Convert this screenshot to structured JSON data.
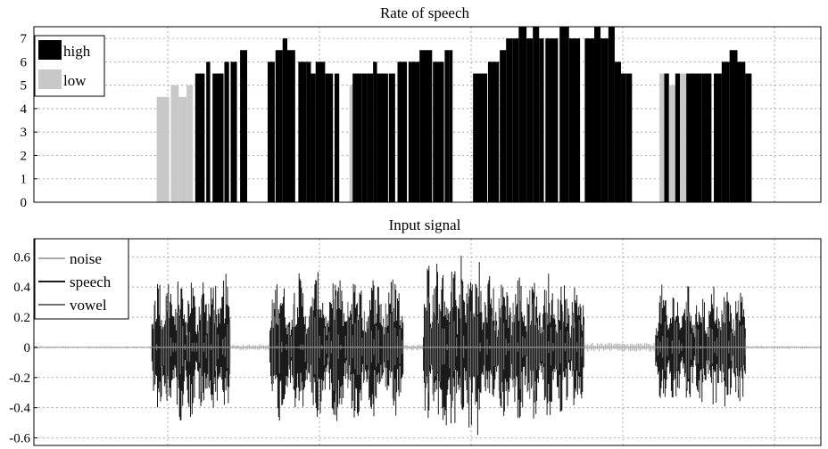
{
  "chart_data": [
    {
      "type": "bar",
      "title": "Rate of speech",
      "xlabel": "",
      "ylabel": "",
      "ylim": [
        0,
        7.5
      ],
      "yticks": [
        0,
        1,
        2,
        3,
        4,
        5,
        6,
        7
      ],
      "grid": true,
      "legend": {
        "placement": "top-left",
        "entries": [
          "high",
          "low"
        ]
      },
      "series": [
        {
          "name": "high",
          "color": "#000000"
        },
        {
          "name": "low",
          "color": "#c8c8c8"
        }
      ],
      "xlim": [
        0,
        1000
      ],
      "bars": [
        {
          "x": 156,
          "w": 16,
          "v": 4.5,
          "s": "low"
        },
        {
          "x": 174,
          "w": 10,
          "v": 5.0,
          "s": "low"
        },
        {
          "x": 184,
          "w": 10,
          "v": 4.5,
          "s": "low"
        },
        {
          "x": 194,
          "w": 8,
          "v": 5.0,
          "s": "low"
        },
        {
          "x": 205,
          "w": 12,
          "v": 5.5,
          "s": "high"
        },
        {
          "x": 219,
          "w": 5,
          "v": 6.0,
          "s": "high"
        },
        {
          "x": 227,
          "w": 14,
          "v": 5.5,
          "s": "high"
        },
        {
          "x": 242,
          "w": 6,
          "v": 6.0,
          "s": "high"
        },
        {
          "x": 250,
          "w": 8,
          "v": 6.0,
          "s": "high"
        },
        {
          "x": 262,
          "w": 9,
          "v": 6.5,
          "s": "high"
        },
        {
          "x": 297,
          "w": 9,
          "v": 6.0,
          "s": "high"
        },
        {
          "x": 307,
          "w": 9,
          "v": 6.5,
          "s": "high"
        },
        {
          "x": 316,
          "w": 6,
          "v": 7.0,
          "s": "high"
        },
        {
          "x": 322,
          "w": 10,
          "v": 6.5,
          "s": "high"
        },
        {
          "x": 336,
          "w": 10,
          "v": 6.0,
          "s": "high"
        },
        {
          "x": 346,
          "w": 6,
          "v": 6.0,
          "s": "high"
        },
        {
          "x": 352,
          "w": 6,
          "v": 5.5,
          "s": "high"
        },
        {
          "x": 358,
          "w": 12,
          "v": 6.0,
          "s": "high"
        },
        {
          "x": 370,
          "w": 10,
          "v": 5.5,
          "s": "high"
        },
        {
          "x": 382,
          "w": 6,
          "v": 5.5,
          "s": "high"
        },
        {
          "x": 401,
          "w": 4,
          "v": 5.0,
          "s": "low"
        },
        {
          "x": 405,
          "w": 6,
          "v": 5.5,
          "s": "high"
        },
        {
          "x": 411,
          "w": 6,
          "v": 5.5,
          "s": "high"
        },
        {
          "x": 417,
          "w": 6,
          "v": 5.5,
          "s": "high"
        },
        {
          "x": 423,
          "w": 8,
          "v": 5.5,
          "s": "high"
        },
        {
          "x": 431,
          "w": 5,
          "v": 6.0,
          "s": "high"
        },
        {
          "x": 436,
          "w": 14,
          "v": 5.5,
          "s": "high"
        },
        {
          "x": 451,
          "w": 8,
          "v": 5.5,
          "s": "high"
        },
        {
          "x": 462,
          "w": 12,
          "v": 6.0,
          "s": "high"
        },
        {
          "x": 476,
          "w": 14,
          "v": 6.0,
          "s": "high"
        },
        {
          "x": 490,
          "w": 16,
          "v": 6.5,
          "s": "high"
        },
        {
          "x": 507,
          "w": 14,
          "v": 6.0,
          "s": "high"
        },
        {
          "x": 522,
          "w": 6,
          "v": 6.5,
          "s": "high"
        },
        {
          "x": 528,
          "w": 4,
          "v": 6.5,
          "s": "high"
        },
        {
          "x": 558,
          "w": 18,
          "v": 5.5,
          "s": "high"
        },
        {
          "x": 577,
          "w": 14,
          "v": 6.0,
          "s": "high"
        },
        {
          "x": 592,
          "w": 8,
          "v": 6.5,
          "s": "high"
        },
        {
          "x": 600,
          "w": 8,
          "v": 7.0,
          "s": "high"
        },
        {
          "x": 608,
          "w": 8,
          "v": 7.0,
          "s": "high"
        },
        {
          "x": 616,
          "w": 10,
          "v": 7.5,
          "s": "high"
        },
        {
          "x": 626,
          "w": 8,
          "v": 7.0,
          "s": "high"
        },
        {
          "x": 634,
          "w": 8,
          "v": 7.5,
          "s": "high"
        },
        {
          "x": 642,
          "w": 6,
          "v": 7.0,
          "s": "high"
        },
        {
          "x": 650,
          "w": 16,
          "v": 7.0,
          "s": "high"
        },
        {
          "x": 668,
          "w": 12,
          "v": 7.5,
          "s": "high"
        },
        {
          "x": 680,
          "w": 14,
          "v": 7.0,
          "s": "high"
        },
        {
          "x": 700,
          "w": 12,
          "v": 7.0,
          "s": "high"
        },
        {
          "x": 712,
          "w": 8,
          "v": 7.5,
          "s": "high"
        },
        {
          "x": 720,
          "w": 10,
          "v": 7.0,
          "s": "high"
        },
        {
          "x": 730,
          "w": 8,
          "v": 7.5,
          "s": "high"
        },
        {
          "x": 738,
          "w": 8,
          "v": 6.0,
          "s": "high"
        },
        {
          "x": 746,
          "w": 6,
          "v": 5.5,
          "s": "high"
        },
        {
          "x": 752,
          "w": 8,
          "v": 5.5,
          "s": "high"
        },
        {
          "x": 795,
          "w": 6,
          "v": 5.5,
          "s": "low"
        },
        {
          "x": 801,
          "w": 6,
          "v": 5.5,
          "s": "high"
        },
        {
          "x": 807,
          "w": 8,
          "v": 5.0,
          "s": "low"
        },
        {
          "x": 815,
          "w": 6,
          "v": 5.5,
          "s": "high"
        },
        {
          "x": 821,
          "w": 8,
          "v": 5.5,
          "s": "low"
        },
        {
          "x": 829,
          "w": 20,
          "v": 5.5,
          "s": "high"
        },
        {
          "x": 849,
          "w": 12,
          "v": 5.5,
          "s": "high"
        },
        {
          "x": 864,
          "w": 10,
          "v": 5.5,
          "s": "high"
        },
        {
          "x": 874,
          "w": 10,
          "v": 6.0,
          "s": "high"
        },
        {
          "x": 884,
          "w": 10,
          "v": 6.5,
          "s": "high"
        },
        {
          "x": 894,
          "w": 10,
          "v": 6.0,
          "s": "high"
        },
        {
          "x": 904,
          "w": 8,
          "v": 5.5,
          "s": "high"
        }
      ]
    },
    {
      "type": "line",
      "title": "Input signal",
      "xlabel": "",
      "ylabel": "",
      "ylim": [
        -0.65,
        0.72
      ],
      "yticks": [
        -0.6,
        -0.4,
        -0.2,
        0,
        0.2,
        0.4,
        0.6
      ],
      "grid": true,
      "legend": {
        "placement": "top-left",
        "entries": [
          "noise",
          "speech",
          "vowel"
        ]
      },
      "series": [
        {
          "name": "noise",
          "color": "#a8a8a8"
        },
        {
          "name": "speech",
          "color": "#1a1a1a"
        },
        {
          "name": "vowel",
          "color": "#707070"
        }
      ],
      "xlim": [
        0,
        1000
      ],
      "segments": [
        {
          "start": 0,
          "end": 150,
          "s": "noise",
          "amp": 0.008
        },
        {
          "start": 150,
          "end": 250,
          "s": "speech",
          "amp": 0.5
        },
        {
          "start": 250,
          "end": 300,
          "s": "noise",
          "amp": 0.02
        },
        {
          "start": 300,
          "end": 470,
          "s": "speech",
          "amp": 0.5
        },
        {
          "start": 470,
          "end": 495,
          "s": "noise",
          "amp": 0.02
        },
        {
          "start": 495,
          "end": 570,
          "s": "speech",
          "amp": 0.62
        },
        {
          "start": 570,
          "end": 700,
          "s": "speech",
          "amp": 0.5
        },
        {
          "start": 700,
          "end": 790,
          "s": "noise",
          "amp": 0.03
        },
        {
          "start": 790,
          "end": 905,
          "s": "speech",
          "amp": 0.42
        },
        {
          "start": 905,
          "end": 1000,
          "s": "noise",
          "amp": 0.01
        }
      ]
    }
  ]
}
